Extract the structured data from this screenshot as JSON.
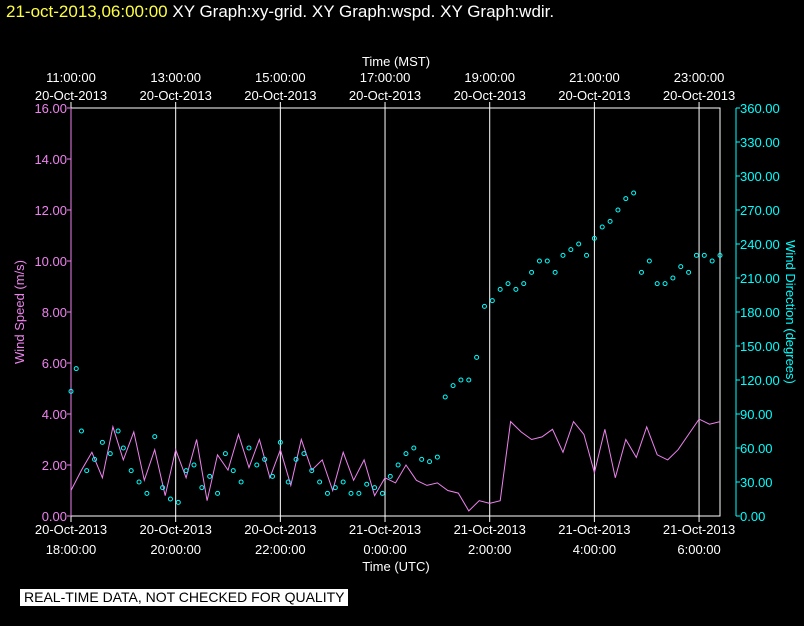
{
  "header": {
    "datetime": "21-oct-2013,06:00:00",
    "graphs": [
      "XY Graph:xy-grid.",
      "XY Graph:wspd.",
      "XY Graph:wdir."
    ]
  },
  "footer": {
    "notice": "REAL-TIME DATA, NOT CHECKED FOR QUALITY"
  },
  "colors": {
    "background": "#000000",
    "grid": "#ffffff",
    "wind_speed": "#ee82ee",
    "wind_direction": "#00ffff",
    "header_date": "#ffff40"
  },
  "chart_data": {
    "type": "line",
    "top_axis": {
      "title": "Time (MST)",
      "ticks": [
        {
          "time": "11:00:00",
          "date": "20-Oct-2013"
        },
        {
          "time": "13:00:00",
          "date": "20-Oct-2013"
        },
        {
          "time": "15:00:00",
          "date": "20-Oct-2013"
        },
        {
          "time": "17:00:00",
          "date": "20-Oct-2013"
        },
        {
          "time": "19:00:00",
          "date": "20-Oct-2013"
        },
        {
          "time": "21:00:00",
          "date": "20-Oct-2013"
        },
        {
          "time": "23:00:00",
          "date": "20-Oct-2013"
        }
      ]
    },
    "bottom_axis": {
      "title": "Time (UTC)",
      "ticks": [
        {
          "date": "20-Oct-2013",
          "time": "18:00:00"
        },
        {
          "date": "20-Oct-2013",
          "time": "20:00:00"
        },
        {
          "date": "20-Oct-2013",
          "time": "22:00:00"
        },
        {
          "date": "21-Oct-2013",
          "time": "0:00:00"
        },
        {
          "date": "21-Oct-2013",
          "time": "2:00:00"
        },
        {
          "date": "21-Oct-2013",
          "time": "4:00:00"
        },
        {
          "date": "21-Oct-2013",
          "time": "6:00:00"
        }
      ]
    },
    "x_range_utc_hours": [
      18,
      30.4
    ],
    "left_axis": {
      "title": "Wind Speed (m/s)",
      "ylim": [
        0,
        16
      ],
      "ticks": [
        "0.00",
        "2.00",
        "4.00",
        "6.00",
        "8.00",
        "10.00",
        "12.00",
        "14.00",
        "16.00"
      ]
    },
    "right_axis": {
      "title": "Wind Direction (degrees)",
      "ylim": [
        0,
        360
      ],
      "ticks": [
        "0.00",
        "30.00",
        "60.00",
        "90.00",
        "120.00",
        "150.00",
        "180.00",
        "210.00",
        "240.00",
        "270.00",
        "300.00",
        "330.00",
        "360.00"
      ]
    },
    "grid": "vertical lines at bottom-axis ticks",
    "wind_speed_series": {
      "style": "line",
      "x": [
        18.0,
        18.2,
        18.4,
        18.6,
        18.8,
        19.0,
        19.2,
        19.4,
        19.6,
        19.8,
        20.0,
        20.2,
        20.4,
        20.6,
        20.8,
        21.0,
        21.2,
        21.4,
        21.6,
        21.8,
        22.0,
        22.2,
        22.4,
        22.6,
        22.8,
        23.0,
        23.2,
        23.4,
        23.6,
        23.8,
        24.0,
        24.2,
        24.4,
        24.6,
        24.8,
        25.0,
        25.2,
        25.4,
        25.6,
        25.8,
        26.0,
        26.2,
        26.4,
        26.6,
        26.8,
        27.0,
        27.2,
        27.4,
        27.6,
        27.8,
        28.0,
        28.2,
        28.4,
        28.6,
        28.8,
        29.0,
        29.2,
        29.4,
        29.6,
        29.8,
        30.0,
        30.2,
        30.4
      ],
      "y": [
        1.0,
        1.8,
        2.5,
        1.5,
        3.5,
        2.2,
        3.3,
        1.4,
        2.6,
        0.8,
        2.6,
        1.5,
        3.0,
        0.6,
        2.4,
        1.8,
        3.2,
        1.9,
        3.0,
        1.5,
        2.6,
        1.2,
        3.0,
        1.8,
        2.2,
        1.0,
        2.5,
        1.4,
        2.2,
        0.8,
        1.5,
        1.3,
        2.0,
        1.4,
        1.2,
        1.3,
        1.0,
        0.9,
        0.2,
        0.6,
        0.5,
        0.6,
        3.7,
        3.3,
        3.0,
        3.1,
        3.4,
        2.5,
        3.7,
        3.2,
        1.7,
        3.4,
        1.5,
        3.0,
        2.3,
        3.5,
        2.4,
        2.2,
        2.6,
        3.2,
        3.8,
        3.6,
        3.7
      ]
    },
    "wind_direction_series": {
      "style": "scatter",
      "x": [
        18.0,
        18.1,
        18.2,
        18.3,
        18.45,
        18.6,
        18.75,
        18.9,
        19.0,
        19.15,
        19.3,
        19.45,
        19.6,
        19.75,
        19.9,
        20.05,
        20.2,
        20.35,
        20.5,
        20.65,
        20.8,
        20.95,
        21.1,
        21.25,
        21.4,
        21.55,
        21.7,
        21.85,
        22.0,
        22.15,
        22.3,
        22.45,
        22.6,
        22.75,
        22.9,
        23.05,
        23.2,
        23.35,
        23.5,
        23.65,
        23.8,
        23.95,
        24.1,
        24.25,
        24.4,
        24.55,
        24.7,
        24.85,
        25.0,
        25.15,
        25.3,
        25.45,
        25.6,
        25.75,
        25.9,
        26.05,
        26.2,
        26.35,
        26.5,
        26.65,
        26.8,
        26.95,
        27.1,
        27.25,
        27.4,
        27.55,
        27.7,
        27.85,
        28.0,
        28.15,
        28.3,
        28.45,
        28.6,
        28.75,
        28.9,
        29.05,
        29.2,
        29.35,
        29.5,
        29.65,
        29.8,
        29.95,
        30.1,
        30.25,
        30.4
      ],
      "y": [
        110,
        130,
        75,
        40,
        50,
        65,
        55,
        75,
        60,
        40,
        30,
        20,
        70,
        25,
        15,
        12,
        40,
        45,
        25,
        35,
        20,
        55,
        40,
        30,
        60,
        45,
        50,
        35,
        65,
        30,
        50,
        55,
        40,
        30,
        20,
        25,
        30,
        20,
        20,
        28,
        25,
        20,
        35,
        45,
        55,
        60,
        50,
        48,
        52,
        105,
        115,
        120,
        120,
        140,
        185,
        190,
        200,
        205,
        200,
        205,
        215,
        225,
        225,
        215,
        230,
        235,
        240,
        230,
        245,
        255,
        260,
        270,
        280,
        285,
        215,
        225,
        205,
        205,
        210,
        220,
        215,
        230,
        230,
        225,
        230
      ]
    }
  }
}
